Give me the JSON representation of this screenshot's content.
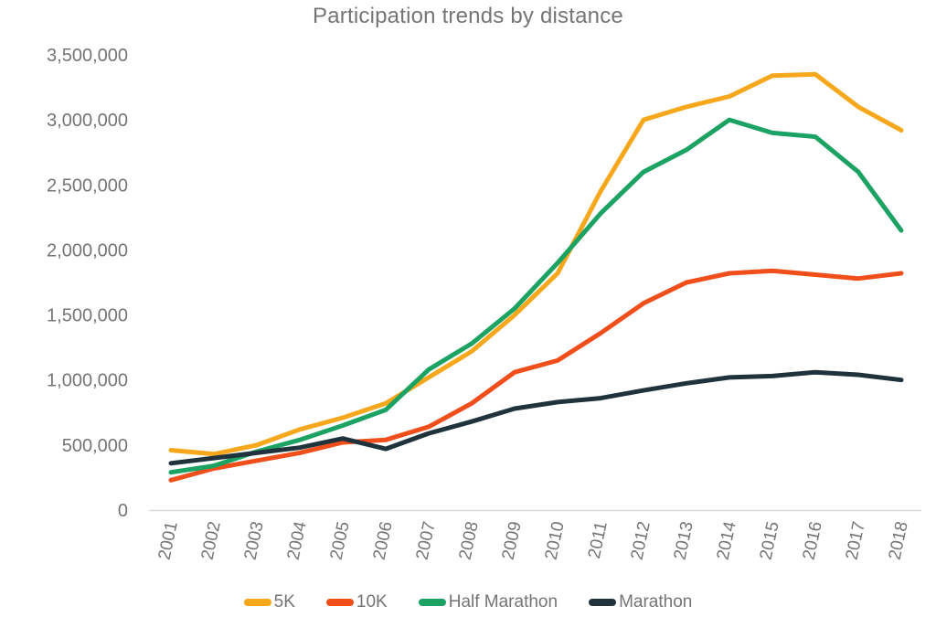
{
  "chart_data": {
    "type": "line",
    "title": "Participation trends by distance",
    "xlabel": "",
    "ylabel": "",
    "x": [
      "2001",
      "2002",
      "2003",
      "2004",
      "2005",
      "2006",
      "2007",
      "2008",
      "2009",
      "2010",
      "2011",
      "2012",
      "2013",
      "2014",
      "2015",
      "2016",
      "2017",
      "2018"
    ],
    "series": [
      {
        "name": "5K",
        "color": "#F6A71B",
        "values": [
          460000,
          430000,
          500000,
          620000,
          710000,
          820000,
          1020000,
          1220000,
          1500000,
          1820000,
          2450000,
          3000000,
          3100000,
          3180000,
          3340000,
          3350000,
          3100000,
          2920000
        ]
      },
      {
        "name": "10K",
        "color": "#F04E1B",
        "values": [
          230000,
          320000,
          380000,
          440000,
          520000,
          540000,
          640000,
          820000,
          1060000,
          1150000,
          1360000,
          1590000,
          1750000,
          1820000,
          1840000,
          1810000,
          1780000,
          1820000
        ]
      },
      {
        "name": "Half Marathon",
        "color": "#1CA263",
        "values": [
          290000,
          340000,
          450000,
          540000,
          650000,
          770000,
          1080000,
          1280000,
          1550000,
          1900000,
          2280000,
          2600000,
          2770000,
          3000000,
          2900000,
          2870000,
          2600000,
          2150000
        ]
      },
      {
        "name": "Marathon",
        "color": "#20333D",
        "values": [
          360000,
          400000,
          440000,
          480000,
          550000,
          470000,
          590000,
          680000,
          780000,
          830000,
          860000,
          920000,
          975000,
          1020000,
          1030000,
          1060000,
          1040000,
          1000000
        ]
      }
    ],
    "y_ticks": [
      "0",
      "500,000",
      "1,000,000",
      "1,500,000",
      "2,000,000",
      "2,500,000",
      "3,000,000",
      "3,500,000"
    ],
    "ylim": [
      0,
      3500000
    ],
    "grid": false,
    "legend_position": "bottom"
  },
  "colors": {
    "tick_text": "#757575",
    "axis_line": "#DADCE0",
    "background": "#FFFFFF"
  }
}
